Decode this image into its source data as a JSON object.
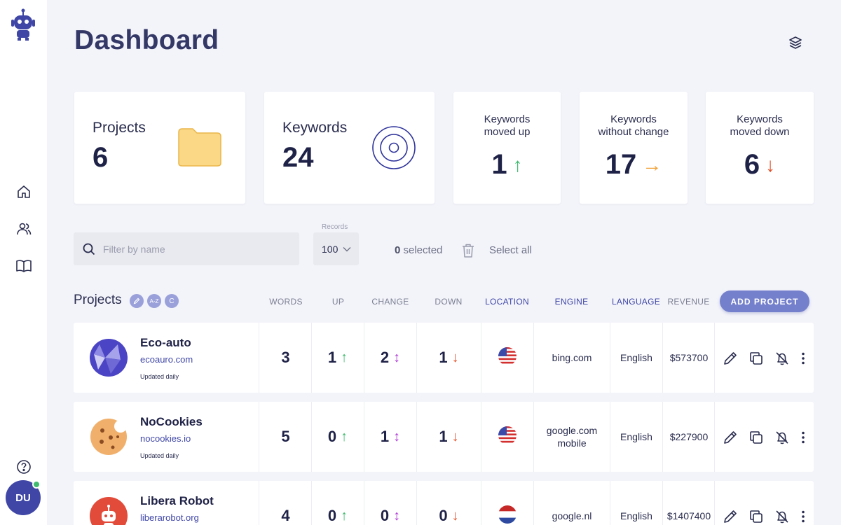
{
  "page": {
    "title": "Dashboard"
  },
  "sidebar": {
    "nav": [
      "robot-logo-icon",
      "home-icon",
      "users-icon",
      "book-icon",
      "help-icon"
    ],
    "avatar_initials": "DU",
    "status_color": "#3fba6e"
  },
  "cards": {
    "projects": {
      "label": "Projects",
      "value": "6"
    },
    "keywords": {
      "label": "Keywords",
      "value": "24"
    },
    "moved_up": {
      "label": "Keywords\nmoved up",
      "value": "1",
      "arrow": "↑",
      "color": "#3fba6e"
    },
    "no_change": {
      "label": "Keywords\nwithout change",
      "value": "17",
      "arrow": "→",
      "color": "#f2a23a"
    },
    "moved_down": {
      "label": "Keywords\nmoved down",
      "value": "6",
      "arrow": "↓",
      "color": "#e0542d"
    }
  },
  "toolbar": {
    "search_placeholder": "Filter by name",
    "records_label": "Records",
    "records_value": "100",
    "selected_count": "0",
    "selected_suffix": " selected",
    "select_all": "Select all"
  },
  "table": {
    "title": "Projects",
    "sort_chips": [
      "A-Z",
      "C"
    ],
    "headers": {
      "words": "WORDS",
      "up": "UP",
      "change": "CHANGE",
      "down": "DOWN",
      "location": "LOCATION",
      "engine": "ENGINE",
      "language": "LANGUAGE",
      "revenue": "REVENUE"
    },
    "add_button": "ADD PROJECT",
    "rows": [
      {
        "name": "Eco-auto",
        "url": "ecoauro.com",
        "updated": "Updated daily",
        "words": "3",
        "up": "1",
        "change": "2",
        "down": "1",
        "location": "us-flag-icon",
        "engine": "bing.com",
        "language": "English",
        "revenue": "$573700"
      },
      {
        "name": "NoCookies",
        "url": "nocookies.io",
        "updated": "Updated daily",
        "words": "5",
        "up": "0",
        "change": "1",
        "down": "1",
        "location": "us-flag-icon",
        "engine": "google.com\nmobile",
        "language": "English",
        "revenue": "$227900"
      },
      {
        "name": "Libera Robot",
        "url": "liberarobot.org",
        "updated": "",
        "words": "4",
        "up": "0",
        "change": "0",
        "down": "0",
        "location": "nl-flag-icon",
        "engine": "google.nl",
        "language": "English",
        "revenue": "$1407400"
      }
    ],
    "arrows": {
      "up": "↑",
      "change": "↕",
      "down": "↓"
    },
    "colors": {
      "up": "#3fba6e",
      "change": "#b13fd6",
      "down": "#e0542d",
      "accent": "#3f46a6"
    }
  }
}
